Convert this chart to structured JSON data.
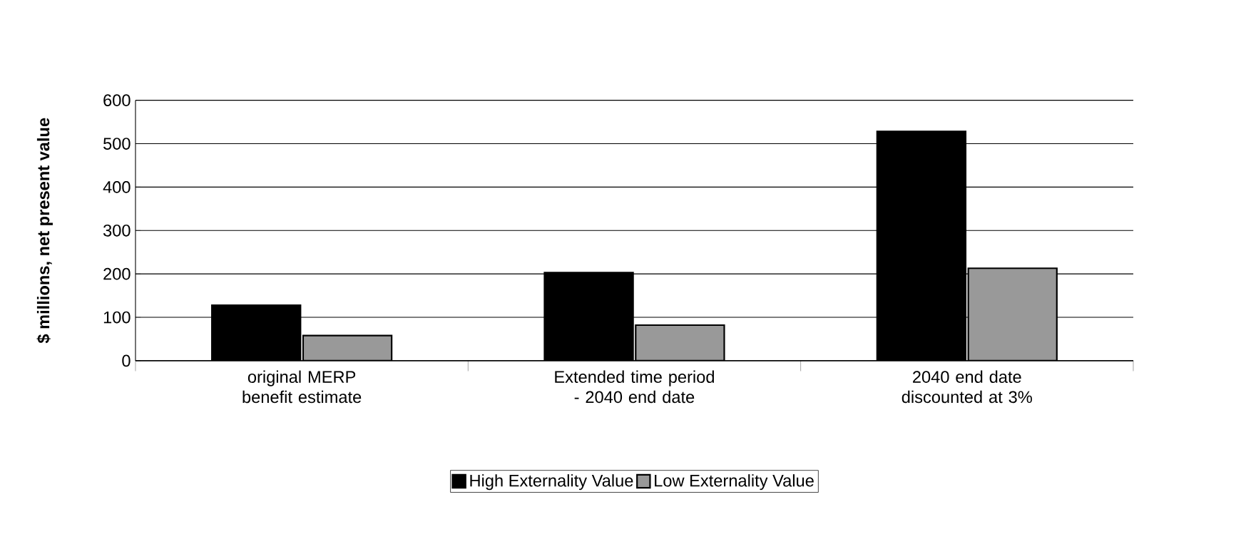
{
  "chart_data": {
    "type": "bar",
    "ylabel": "$ millions, net present value",
    "categories": [
      "original MERP benefit estimate",
      "Extended time period - 2040 end date",
      "2040 end date discounted at 3%"
    ],
    "series": [
      {
        "name": "High Externality Value",
        "color": "#000000",
        "values": [
          128,
          203,
          528
        ]
      },
      {
        "name": "Low Externality Value",
        "color": "#999999",
        "values": [
          58,
          82,
          213
        ]
      }
    ],
    "ylim": [
      0,
      600
    ],
    "yticks": [
      0,
      100,
      200,
      300,
      400,
      500,
      600
    ],
    "grid": "y",
    "legend": "bottom"
  }
}
